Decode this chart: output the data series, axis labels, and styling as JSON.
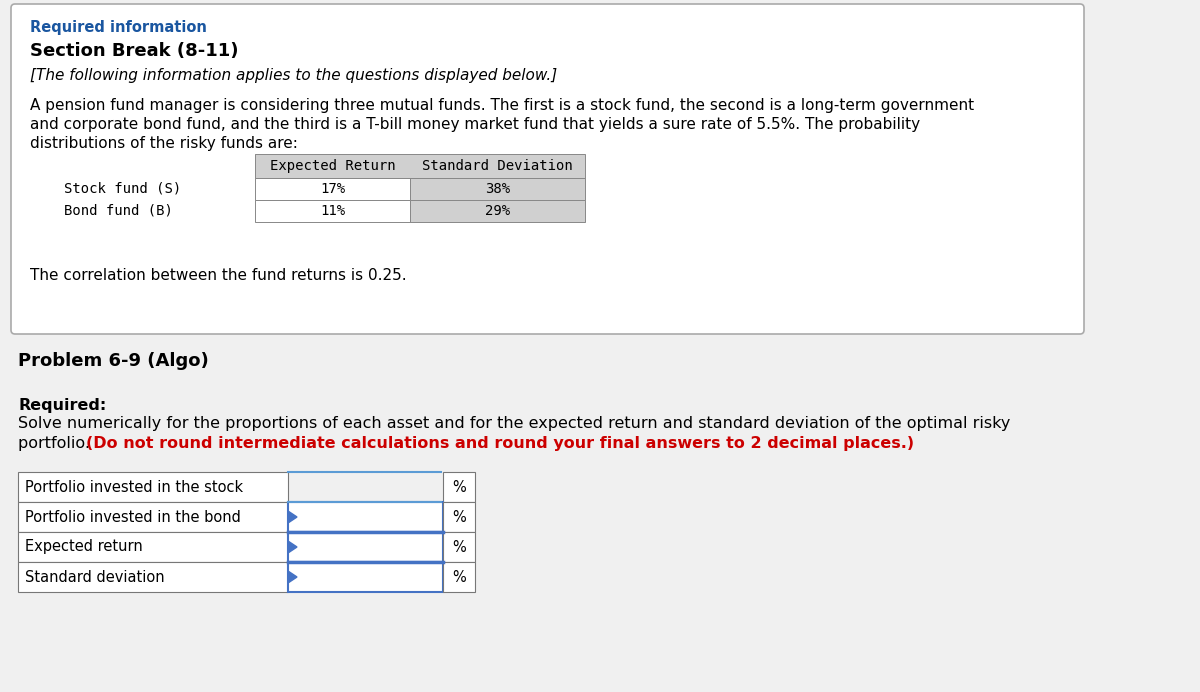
{
  "bg_color": "#f0f0f0",
  "box_bg": "#ffffff",
  "outer_border_color": "#aaaaaa",
  "section1_title": "Required information",
  "section1_title_color": "#1a56a0",
  "section2_title": "Section Break (8-11)",
  "italic_line": "[The following information applies to the questions displayed below.]",
  "paragraph_line1": "A pension fund manager is considering three mutual funds. The first is a stock fund, the second is a long-term government",
  "paragraph_line2": "and corporate bond fund, and the third is a T-bill money market fund that yields a sure rate of 5.5%. The probability",
  "paragraph_line3": "distributions of the risky funds are:",
  "table1_col1_header": "",
  "table1_col2_header": "Expected Return",
  "table1_col3_header": "Standard Deviation",
  "table1_rows": [
    [
      "Stock fund (S)",
      "17%",
      "38%"
    ],
    [
      "Bond fund (B)",
      "11%",
      "29%"
    ]
  ],
  "table1_header_bg": "#d0d0d0",
  "table1_std_bg": "#d0d0d0",
  "correlation_line": "The correlation between the fund returns is 0.25.",
  "problem_title": "Problem 6-9 (Algo)",
  "required_label": "Required:",
  "req_normal1": "Solve numerically for the proportions of each asset and for the expected return and standard deviation of the optimal risky",
  "req_normal2": "portfolio. ",
  "req_bold_red": "(Do not round intermediate calculations and round your final answers to 2 decimal places.)",
  "table2_rows": [
    "Portfolio invested in the stock",
    "Portfolio invested in the bond",
    "Expected return",
    "Standard deviation"
  ],
  "percent_sign": "%",
  "table2_border_solid": "#4472c4",
  "table2_border_dotted": "#5b9bd5",
  "table2_label_border": "#777777"
}
